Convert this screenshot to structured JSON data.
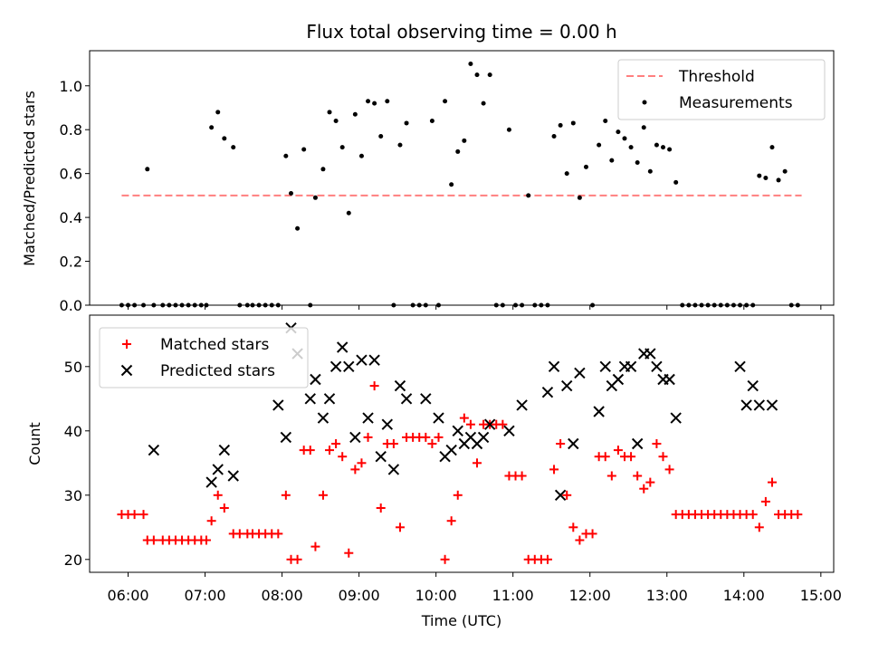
{
  "chart_data": [
    {
      "type": "scatter",
      "title": "Flux total observing time = 0.00 h",
      "ylabel": "Matched/Predicted stars",
      "xlim": [
        "05:30",
        "15:10"
      ],
      "ylim": [
        0,
        1.16
      ],
      "yticks": [
        "0.0",
        "0.2",
        "0.4",
        "0.6",
        "0.8",
        "1.0"
      ],
      "legend_position": "top-right",
      "threshold": {
        "name": "Threshold",
        "value": 0.5,
        "x_start": "05:55",
        "x_end": "14:45",
        "color": "#ff7f7f"
      },
      "series": [
        {
          "name": "Measurements",
          "color": "#000000",
          "marker": "dot",
          "x": [
            "05:55",
            "06:00",
            "06:05",
            "06:12",
            "06:15",
            "06:20",
            "06:27",
            "06:32",
            "06:37",
            "06:42",
            "06:47",
            "06:52",
            "06:57",
            "07:01",
            "07:05",
            "07:10",
            "07:15",
            "07:22",
            "07:27",
            "07:33",
            "07:37",
            "07:42",
            "07:47",
            "07:52",
            "07:57",
            "08:03",
            "08:07",
            "08:12",
            "08:17",
            "08:22",
            "08:26",
            "08:32",
            "08:37",
            "08:42",
            "08:47",
            "08:52",
            "08:57",
            "09:02",
            "09:07",
            "09:12",
            "09:17",
            "09:22",
            "09:27",
            "09:32",
            "09:37",
            "09:42",
            "09:47",
            "09:52",
            "09:57",
            "10:02",
            "10:07",
            "10:12",
            "10:17",
            "10:22",
            "10:27",
            "10:32",
            "10:37",
            "10:42",
            "10:47",
            "10:52",
            "10:57",
            "11:02",
            "11:07",
            "11:12",
            "11:17",
            "11:22",
            "11:27",
            "11:32",
            "11:37",
            "11:42",
            "11:47",
            "11:52",
            "11:57",
            "12:02",
            "12:07",
            "12:12",
            "12:17",
            "12:22",
            "12:27",
            "12:32",
            "12:37",
            "12:42",
            "12:47",
            "12:52",
            "12:57",
            "13:02",
            "13:07",
            "13:12",
            "13:17",
            "13:22",
            "13:27",
            "13:32",
            "13:37",
            "13:42",
            "13:47",
            "13:52",
            "13:57",
            "14:02",
            "14:07",
            "14:12",
            "14:17",
            "14:22",
            "14:27",
            "14:32",
            "14:37",
            "14:42"
          ],
          "y": [
            0,
            0,
            0,
            0,
            0.62,
            0,
            0,
            0,
            0,
            0,
            0,
            0,
            0,
            0,
            0.81,
            0.88,
            0.76,
            0.72,
            0,
            0,
            0,
            0,
            0,
            0,
            0,
            0.68,
            0.51,
            0.35,
            0.71,
            0,
            0.49,
            0.62,
            0.88,
            0.84,
            0.72,
            0.42,
            0.87,
            0.68,
            0.93,
            0.92,
            0.77,
            0.93,
            0,
            0.73,
            0.83,
            0,
            0,
            0,
            0.84,
            0,
            0.93,
            0.55,
            0.7,
            0.75,
            1.1,
            1.05,
            0.92,
            1.05,
            0,
            0,
            0.8,
            0,
            0,
            0.5,
            0,
            0,
            0,
            0.77,
            0.82,
            0.6,
            0.83,
            0.49,
            0.63,
            0,
            0.73,
            0.84,
            0.66,
            0.79,
            0.76,
            0.72,
            0.65,
            0.81,
            0.61,
            0.73,
            0.72,
            0.71,
            0.56,
            0,
            0,
            0,
            0,
            0,
            0,
            0,
            0,
            0,
            0,
            0,
            0,
            0.59,
            0.58,
            0.72,
            0.57,
            0.61,
            0,
            0
          ]
        }
      ]
    },
    {
      "type": "scatter",
      "xlabel": "Time (UTC)",
      "ylabel": "Count",
      "xlim": [
        "05:30",
        "15:10"
      ],
      "ylim": [
        18,
        58
      ],
      "xticks": [
        "06:00",
        "07:00",
        "08:00",
        "09:00",
        "10:00",
        "11:00",
        "12:00",
        "13:00",
        "14:00",
        "15:00"
      ],
      "yticks": [
        "20",
        "30",
        "40",
        "50"
      ],
      "legend_position": "top-left",
      "series": [
        {
          "name": "Matched stars",
          "color": "#ff0000",
          "marker": "plus",
          "x": [
            "05:55",
            "06:00",
            "06:05",
            "06:12",
            "06:15",
            "06:20",
            "06:27",
            "06:32",
            "06:37",
            "06:42",
            "06:47",
            "06:52",
            "06:57",
            "07:01",
            "07:05",
            "07:10",
            "07:15",
            "07:22",
            "07:27",
            "07:33",
            "07:37",
            "07:42",
            "07:47",
            "07:52",
            "07:57",
            "08:03",
            "08:07",
            "08:12",
            "08:17",
            "08:22",
            "08:26",
            "08:32",
            "08:37",
            "08:42",
            "08:47",
            "08:52",
            "08:57",
            "09:02",
            "09:07",
            "09:12",
            "09:17",
            "09:22",
            "09:27",
            "09:32",
            "09:37",
            "09:42",
            "09:47",
            "09:52",
            "09:57",
            "10:02",
            "10:07",
            "10:12",
            "10:17",
            "10:22",
            "10:27",
            "10:32",
            "10:37",
            "10:42",
            "10:47",
            "10:52",
            "10:57",
            "11:02",
            "11:07",
            "11:12",
            "11:17",
            "11:22",
            "11:27",
            "11:32",
            "11:37",
            "11:42",
            "11:47",
            "11:52",
            "11:57",
            "12:02",
            "12:07",
            "12:12",
            "12:17",
            "12:22",
            "12:27",
            "12:32",
            "12:37",
            "12:42",
            "12:47",
            "12:52",
            "12:57",
            "13:02",
            "13:07",
            "13:12",
            "13:17",
            "13:22",
            "13:27",
            "13:32",
            "13:37",
            "13:42",
            "13:47",
            "13:52",
            "13:57",
            "14:02",
            "14:07",
            "14:12",
            "14:17",
            "14:22",
            "14:27",
            "14:32",
            "14:37",
            "14:42"
          ],
          "y": [
            27,
            27,
            27,
            27,
            23,
            23,
            23,
            23,
            23,
            23,
            23,
            23,
            23,
            23,
            26,
            30,
            28,
            24,
            24,
            24,
            24,
            24,
            24,
            24,
            24,
            30,
            20,
            20,
            37,
            37,
            22,
            30,
            37,
            38,
            36,
            21,
            34,
            35,
            39,
            47,
            28,
            38,
            38,
            25,
            39,
            39,
            39,
            39,
            38,
            39,
            20,
            26,
            30,
            42,
            41,
            35,
            41,
            41,
            41,
            41,
            33,
            33,
            33,
            20,
            20,
            20,
            20,
            34,
            38,
            30,
            25,
            23,
            24,
            24,
            36,
            36,
            33,
            37,
            36,
            36,
            33,
            31,
            32,
            38,
            36,
            34,
            27,
            27,
            27,
            27,
            27,
            27,
            27,
            27,
            27,
            27,
            27,
            27,
            27,
            25,
            29,
            32,
            27,
            27,
            27,
            27
          ]
        },
        {
          "name": "Predicted stars",
          "color": "#000000",
          "marker": "x",
          "x": [
            "06:20",
            "07:05",
            "07:10",
            "07:15",
            "07:22",
            "07:57",
            "08:03",
            "08:07",
            "08:12",
            "08:22",
            "08:26",
            "08:32",
            "08:37",
            "08:42",
            "08:47",
            "08:52",
            "08:57",
            "09:02",
            "09:07",
            "09:12",
            "09:17",
            "09:22",
            "09:27",
            "09:32",
            "09:37",
            "09:52",
            "10:02",
            "10:07",
            "10:12",
            "10:17",
            "10:22",
            "10:27",
            "10:32",
            "10:37",
            "10:42",
            "10:57",
            "11:07",
            "11:27",
            "11:32",
            "11:37",
            "11:42",
            "11:47",
            "11:52",
            "12:07",
            "12:12",
            "12:17",
            "12:22",
            "12:27",
            "12:32",
            "12:37",
            "12:42",
            "12:47",
            "12:52",
            "12:57",
            "13:02",
            "13:07",
            "13:57",
            "14:02",
            "14:07",
            "14:12",
            "14:22"
          ],
          "y": [
            37,
            32,
            34,
            37,
            33,
            44,
            39,
            56,
            52,
            45,
            48,
            42,
            45,
            50,
            53,
            50,
            39,
            51,
            42,
            51,
            36,
            41,
            34,
            47,
            45,
            45,
            42,
            36,
            37,
            40,
            38,
            39,
            38,
            39,
            41,
            40,
            44,
            46,
            50,
            30,
            47,
            38,
            49,
            43,
            50,
            47,
            48,
            50,
            50,
            38,
            52,
            52,
            50,
            48,
            48,
            42,
            50,
            44,
            47,
            44,
            44
          ]
        }
      ]
    }
  ]
}
